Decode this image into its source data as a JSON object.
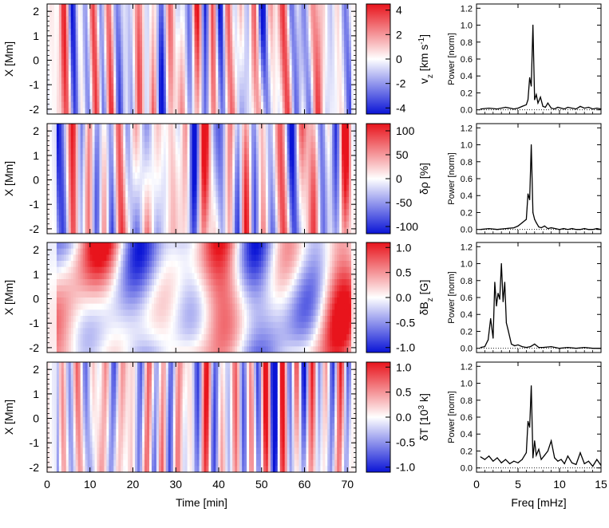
{
  "chart_data": [
    {
      "type": "heatmap",
      "colorbar_label": "v_z [km s^-1]",
      "ylabel": "X [Mm]",
      "xlabel": "",
      "xlim": [
        0,
        72
      ],
      "ylim": [
        -2.2,
        2.3
      ],
      "yticks": [
        "2",
        "1",
        "0",
        "-1",
        "-2"
      ],
      "colorbar_ticks": [
        "4",
        "2",
        "0",
        "-2",
        "-4"
      ],
      "colorbar_range": [
        -4.5,
        4.5
      ],
      "colormap": [
        "#0a14d6",
        "#ffffff",
        "#e8141c"
      ]
    },
    {
      "type": "heatmap",
      "colorbar_label": "δρ [%]",
      "ylabel": "X [Mm]",
      "xlabel": "",
      "xlim": [
        0,
        72
      ],
      "ylim": [
        -2.2,
        2.3
      ],
      "yticks": [
        "2",
        "1",
        "0",
        "-1",
        "-2"
      ],
      "colorbar_ticks": [
        "100",
        "50",
        "0",
        "-50",
        "-100"
      ],
      "colorbar_range": [
        -115,
        115
      ],
      "colormap": [
        "#0a14d6",
        "#ffffff",
        "#e8141c"
      ]
    },
    {
      "type": "heatmap",
      "colorbar_label": "δB_z [G]",
      "ylabel": "X [Mm]",
      "xlabel": "",
      "xlim": [
        0,
        72
      ],
      "ylim": [
        -2.2,
        2.3
      ],
      "yticks": [
        "2",
        "1",
        "0",
        "-1",
        "-2"
      ],
      "colorbar_ticks": [
        "1.0",
        "0.5",
        "0.0",
        "-0.5",
        "-1.0"
      ],
      "colorbar_range": [
        -1.1,
        1.1
      ],
      "colormap": [
        "#0a14d6",
        "#ffffff",
        "#e8141c"
      ]
    },
    {
      "type": "heatmap",
      "colorbar_label": "δT [10^3 k]",
      "ylabel": "X [Mm]",
      "xlabel": "Time [min]",
      "xlim": [
        0,
        72
      ],
      "ylim": [
        -2.2,
        2.3
      ],
      "yticks": [
        "2",
        "1",
        "0",
        "-1",
        "-2"
      ],
      "xticks": [
        "0",
        "10",
        "20",
        "30",
        "40",
        "50",
        "60",
        "70"
      ],
      "colorbar_ticks": [
        "1.0",
        "0.5",
        "0.0",
        "-0.5",
        "-1.0"
      ],
      "colorbar_range": [
        -1.1,
        1.1
      ],
      "colormap": [
        "#0a14d6",
        "#ffffff",
        "#e8141c"
      ]
    },
    {
      "type": "line",
      "ylabel": "Power [norm]",
      "xlabel": "",
      "xlim": [
        0,
        15
      ],
      "ylim": [
        -0.05,
        1.25
      ],
      "yticks": [
        "1.2",
        "1.0",
        "0.8",
        "0.6",
        "0.4",
        "0.2",
        "0.0"
      ],
      "series": [
        {
          "x": [
            0.5,
            1.5,
            2.5,
            3.5,
            4.5,
            5.0,
            5.5,
            6.0,
            6.2,
            6.4,
            6.6,
            6.8,
            7.0,
            7.2,
            7.4,
            7.7,
            8.0,
            8.3,
            8.6,
            9.0,
            9.4,
            9.8,
            10.2,
            10.6,
            11.0,
            11.5,
            12.0,
            12.5,
            13.0,
            13.5,
            14.0,
            14.5,
            15.0
          ],
          "y": [
            0.01,
            0.02,
            0.01,
            0.03,
            0.01,
            0.02,
            0.04,
            0.06,
            0.12,
            0.38,
            0.28,
            1.0,
            0.12,
            0.18,
            0.08,
            0.15,
            0.04,
            0.03,
            0.08,
            0.02,
            0.01,
            0.03,
            0.02,
            0.01,
            0.03,
            0.02,
            0.01,
            0.04,
            0.02,
            0.03,
            0.01,
            0.02,
            0.01
          ]
        }
      ]
    },
    {
      "type": "line",
      "ylabel": "Power [norm]",
      "xlabel": "",
      "xlim": [
        0,
        15
      ],
      "ylim": [
        -0.05,
        1.25
      ],
      "yticks": [
        "1.2",
        "1.0",
        "0.8",
        "0.6",
        "0.4",
        "0.2",
        "0.0"
      ],
      "series": [
        {
          "x": [
            0.5,
            1.5,
            2.5,
            3.5,
            4.5,
            5.0,
            5.5,
            6.0,
            6.2,
            6.4,
            6.6,
            6.8,
            7.0,
            7.2,
            7.5,
            7.8,
            8.2,
            8.6,
            9.0,
            9.5,
            10.0,
            10.5,
            11.0,
            11.5,
            12.0,
            12.5,
            13.0,
            13.5,
            14.0,
            14.5,
            15.0
          ],
          "y": [
            0.0,
            0.01,
            0.0,
            0.01,
            0.02,
            0.04,
            0.08,
            0.12,
            0.42,
            0.35,
            1.0,
            0.2,
            0.12,
            0.08,
            0.03,
            0.02,
            0.04,
            0.01,
            0.02,
            0.01,
            0.0,
            0.01,
            0.0,
            0.01,
            0.0,
            0.0,
            0.01,
            0.0,
            0.0,
            0.01,
            0.0
          ]
        }
      ]
    },
    {
      "type": "line",
      "ylabel": "Power [norm]",
      "xlabel": "",
      "xlim": [
        0,
        15
      ],
      "ylim": [
        -0.05,
        1.25
      ],
      "yticks": [
        "1.2",
        "1.0",
        "0.8",
        "0.6",
        "0.4",
        "0.2",
        "0.0"
      ],
      "series": [
        {
          "x": [
            0.5,
            1.0,
            1.4,
            1.7,
            2.0,
            2.2,
            2.4,
            2.6,
            2.8,
            3.0,
            3.2,
            3.4,
            3.6,
            3.8,
            4.2,
            4.6,
            5.0,
            5.5,
            6.0,
            6.5,
            7.0,
            7.5,
            8.0,
            9.0,
            10.0,
            11.0,
            12.0,
            13.0,
            14.0,
            15.0
          ],
          "y": [
            0.01,
            0.02,
            0.1,
            0.35,
            0.12,
            0.78,
            0.5,
            0.65,
            0.58,
            1.0,
            0.55,
            0.78,
            0.3,
            0.22,
            0.05,
            0.03,
            0.04,
            0.02,
            0.01,
            0.02,
            0.05,
            0.01,
            0.01,
            0.02,
            0.0,
            0.01,
            0.0,
            0.01,
            0.0,
            0.0
          ]
        }
      ]
    },
    {
      "type": "line",
      "ylabel": "Power [norm]",
      "xlabel": "Freq [mHz]",
      "xlim": [
        0,
        15
      ],
      "ylim": [
        -0.05,
        1.25
      ],
      "yticks": [
        "1.2",
        "1.0",
        "0.8",
        "0.6",
        "0.4",
        "0.2",
        "0.0"
      ],
      "xticks": [
        "0",
        "5",
        "10",
        "15"
      ],
      "series": [
        {
          "x": [
            0.5,
            1.0,
            1.5,
            2.0,
            2.5,
            3.0,
            3.5,
            4.0,
            4.5,
            5.0,
            5.5,
            6.0,
            6.2,
            6.4,
            6.6,
            6.8,
            7.0,
            7.2,
            7.5,
            7.8,
            8.2,
            8.6,
            9.0,
            9.4,
            9.8,
            10.2,
            10.6,
            11.0,
            11.5,
            12.0,
            12.5,
            13.0,
            13.5,
            14.0,
            14.5,
            15.0
          ],
          "y": [
            0.13,
            0.1,
            0.14,
            0.08,
            0.12,
            0.06,
            0.1,
            0.05,
            0.08,
            0.06,
            0.1,
            0.18,
            0.55,
            0.48,
            0.97,
            0.12,
            0.32,
            0.15,
            0.22,
            0.1,
            0.15,
            0.2,
            0.32,
            0.12,
            0.08,
            0.1,
            0.05,
            0.14,
            0.06,
            0.04,
            0.18,
            0.05,
            0.08,
            0.02,
            0.1,
            0.03
          ]
        }
      ]
    }
  ]
}
